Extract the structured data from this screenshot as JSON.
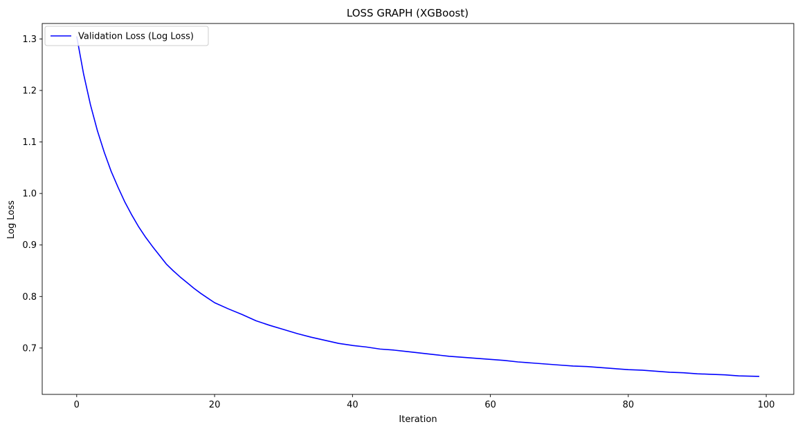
{
  "chart_data": {
    "type": "line",
    "title": "LOSS GRAPH (XGBoost)",
    "xlabel": "Iteration",
    "ylabel": "Log Loss",
    "xlim": [
      -5,
      104
    ],
    "ylim": [
      0.61,
      1.33
    ],
    "xticks": [
      0,
      20,
      40,
      60,
      80,
      100
    ],
    "yticks": [
      0.7,
      0.8,
      0.9,
      1.0,
      1.1,
      1.2,
      1.3
    ],
    "grid": false,
    "legend_position": "top-left",
    "series": [
      {
        "name": "Validation Loss (Log Loss)",
        "color": "#0000ff",
        "x": [
          0,
          1,
          2,
          3,
          4,
          5,
          6,
          7,
          8,
          9,
          10,
          11,
          12,
          13,
          14,
          15,
          16,
          17,
          18,
          19,
          20,
          22,
          24,
          26,
          28,
          30,
          32,
          34,
          36,
          38,
          40,
          42,
          44,
          46,
          48,
          50,
          52,
          54,
          56,
          58,
          60,
          62,
          64,
          66,
          68,
          70,
          72,
          74,
          76,
          78,
          80,
          82,
          84,
          86,
          88,
          90,
          92,
          94,
          96,
          99
        ],
        "y": [
          1.305,
          1.232,
          1.172,
          1.122,
          1.08,
          1.043,
          1.012,
          0.983,
          0.958,
          0.935,
          0.915,
          0.897,
          0.88,
          0.863,
          0.85,
          0.838,
          0.827,
          0.816,
          0.806,
          0.797,
          0.788,
          0.776,
          0.765,
          0.753,
          0.744,
          0.736,
          0.728,
          0.721,
          0.715,
          0.709,
          0.705,
          0.702,
          0.698,
          0.696,
          0.693,
          0.69,
          0.687,
          0.684,
          0.682,
          0.68,
          0.678,
          0.676,
          0.673,
          0.671,
          0.669,
          0.667,
          0.665,
          0.664,
          0.662,
          0.66,
          0.658,
          0.657,
          0.655,
          0.653,
          0.652,
          0.65,
          0.649,
          0.648,
          0.646,
          0.645
        ]
      }
    ]
  }
}
